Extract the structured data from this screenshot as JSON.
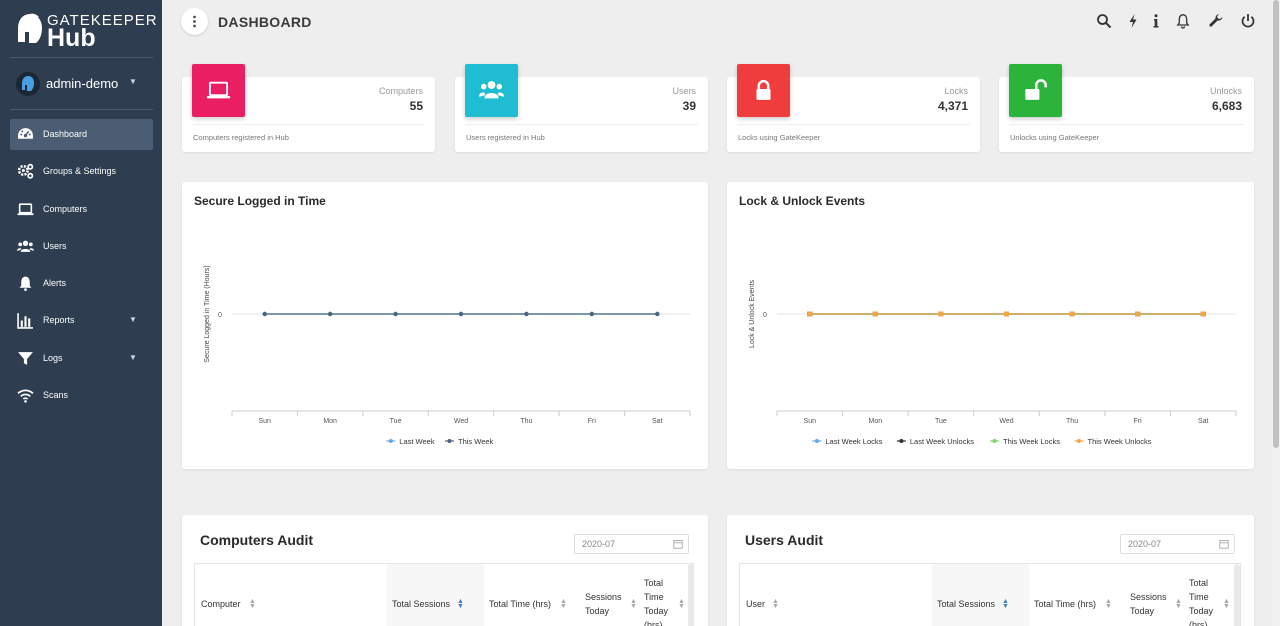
{
  "brand": {
    "line1": "GATEKEEPER",
    "line2": "Hub"
  },
  "user": {
    "name": "admin-demo"
  },
  "sidebar": {
    "items": [
      {
        "label": "Dashboard",
        "icon": "dashboard-icon",
        "active": true
      },
      {
        "label": "Groups & Settings",
        "icon": "gears-icon"
      },
      {
        "label": "Computers",
        "icon": "laptop-icon"
      },
      {
        "label": "Users",
        "icon": "users-icon"
      },
      {
        "label": "Alerts",
        "icon": "bell-icon"
      },
      {
        "label": "Reports",
        "icon": "bar-chart-icon",
        "dropdown": true
      },
      {
        "label": "Logs",
        "icon": "filter-icon",
        "dropdown": true
      },
      {
        "label": "Scans",
        "icon": "wifi-icon"
      }
    ]
  },
  "header": {
    "title": "DASHBOARD",
    "icons": [
      "search-icon",
      "bolt-icon",
      "info-icon",
      "bell-icon",
      "wrench-icon",
      "power-icon"
    ]
  },
  "stats": [
    {
      "label": "Computers",
      "value": "55",
      "footer": "Computers registered in Hub",
      "color": "#e91e63",
      "icon": "laptop-icon"
    },
    {
      "label": "Users",
      "value": "39",
      "footer": "Users registered in Hub",
      "color": "#1fbcd2",
      "icon": "users-icon"
    },
    {
      "label": "Locks",
      "value": "4,371",
      "footer": "Locks using GateKeeper",
      "color": "#ef3c3c",
      "icon": "lock-icon"
    },
    {
      "label": "Unlocks",
      "value": "6,683",
      "footer": "Unlocks using GateKeeper",
      "color": "#2cb33c",
      "icon": "unlock-icon"
    }
  ],
  "chart_data": [
    {
      "type": "line",
      "title": "Secure Logged in Time",
      "xlabel": "",
      "ylabel": "Secure Logged in Time (Hours)",
      "categories": [
        "Sun",
        "Mon",
        "Tue",
        "Wed",
        "Thu",
        "Fri",
        "Sat"
      ],
      "yticks": [
        "0"
      ],
      "legend_position": "bottom",
      "series": [
        {
          "name": "Last Week",
          "color": "#6aa8e0",
          "values": [
            0,
            0,
            0,
            0,
            0,
            0,
            0
          ]
        },
        {
          "name": "This Week",
          "color": "#4a6582",
          "values": [
            0,
            0,
            0,
            0,
            0,
            0,
            0
          ]
        }
      ]
    },
    {
      "type": "line",
      "title": "Lock & Unlock Events",
      "xlabel": "",
      "ylabel": "Lock & Unlock Events",
      "categories": [
        "Sun",
        "Mon",
        "Tue",
        "Wed",
        "Thu",
        "Fri",
        "Sat"
      ],
      "yticks": [
        "0"
      ],
      "legend_position": "bottom",
      "series": [
        {
          "name": "Last Week Locks",
          "color": "#6aa8e0",
          "values": [
            0,
            0,
            0,
            0,
            0,
            0,
            0
          ]
        },
        {
          "name": "Last Week Unlocks",
          "color": "#333333",
          "values": [
            0,
            0,
            0,
            0,
            0,
            0,
            0
          ]
        },
        {
          "name": "This Week Locks",
          "color": "#7ed36f",
          "values": [
            0,
            0,
            0,
            0,
            0,
            0,
            0
          ]
        },
        {
          "name": "This Week Unlocks",
          "color": "#f2a64a",
          "values": [
            0,
            0,
            0,
            0,
            0,
            0,
            0
          ]
        }
      ]
    }
  ],
  "audits": [
    {
      "title": "Computers Audit",
      "date": "2020-07",
      "columns": [
        {
          "label": "Computer"
        },
        {
          "label": "Total Sessions",
          "sorted": true
        },
        {
          "label": "Total Time (hrs)"
        },
        {
          "label": "Sessions Today"
        },
        {
          "label": "Total Time Today (hrs)"
        }
      ]
    },
    {
      "title": "Users Audit",
      "date": "2020-07",
      "columns": [
        {
          "label": "User"
        },
        {
          "label": "Total Sessions",
          "sorted": true
        },
        {
          "label": "Total Time (hrs)"
        },
        {
          "label": "Sessions Today"
        },
        {
          "label": "Total Time Today (hrs)"
        }
      ]
    }
  ]
}
